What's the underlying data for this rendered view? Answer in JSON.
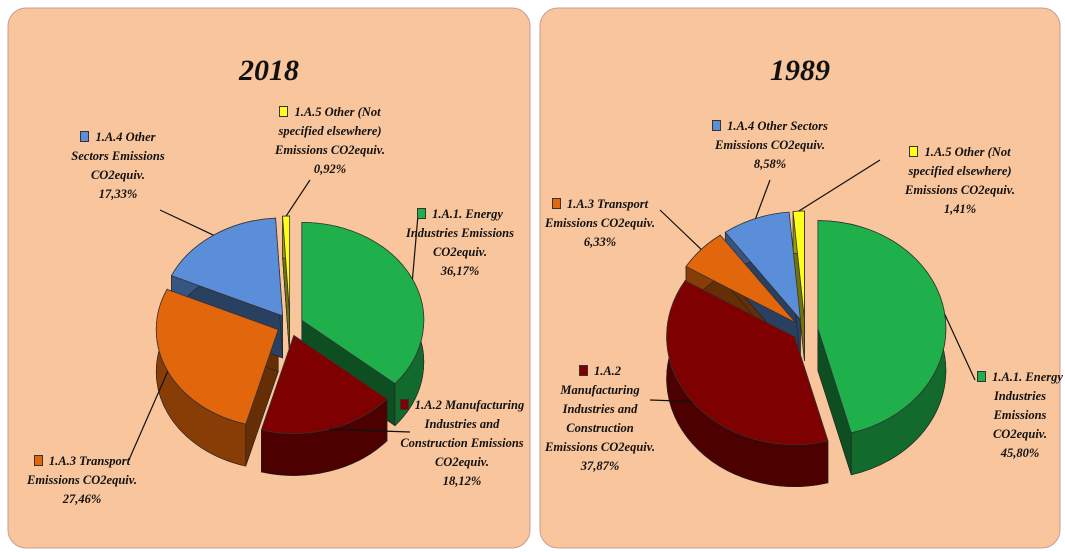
{
  "chart_data": [
    {
      "type": "pie",
      "title": "2018",
      "categories": [
        "1.A.1. Energy Industries Emissions CO2equiv.",
        "1.A.2 Manufacturing Industries and Construction Emissions CO2equiv.",
        "1.A.3 Transport Emissions CO2equiv.",
        "1.A.4 Other Sectors Emissions CO2equiv.",
        "1.A.5 Other (Not specified elsewhere) Emissions CO2equiv."
      ],
      "values": [
        36.17,
        18.12,
        27.46,
        17.33,
        0.92
      ],
      "value_labels": [
        "36,17%",
        "18,12%",
        "27,46%",
        "17,33%",
        "0,92%"
      ],
      "colors": [
        "#1fb04b",
        "#7f0000",
        "#e2660c",
        "#5b8ed8",
        "#ffff1a"
      ]
    },
    {
      "type": "pie",
      "title": "1989",
      "categories": [
        "1.A.1. Energy Industries Emissions CO2equiv.",
        "1.A.2 Manufacturing Industries and Construction Emissions CO2equiv.",
        "1.A.3 Transport Emissions CO2equiv.",
        "1.A.4 Other Sectors Emissions CO2equiv.",
        "1.A.5 Other (Not specified elsewhere) Emissions CO2equiv."
      ],
      "values": [
        45.8,
        37.87,
        6.33,
        8.58,
        1.41
      ],
      "value_labels": [
        "45,80%",
        "37,87%",
        "6,33%",
        "8,58%",
        "1,41%"
      ],
      "colors": [
        "#1fb04b",
        "#7f0000",
        "#e2660c",
        "#5b8ed8",
        "#ffff1a"
      ]
    }
  ]
}
